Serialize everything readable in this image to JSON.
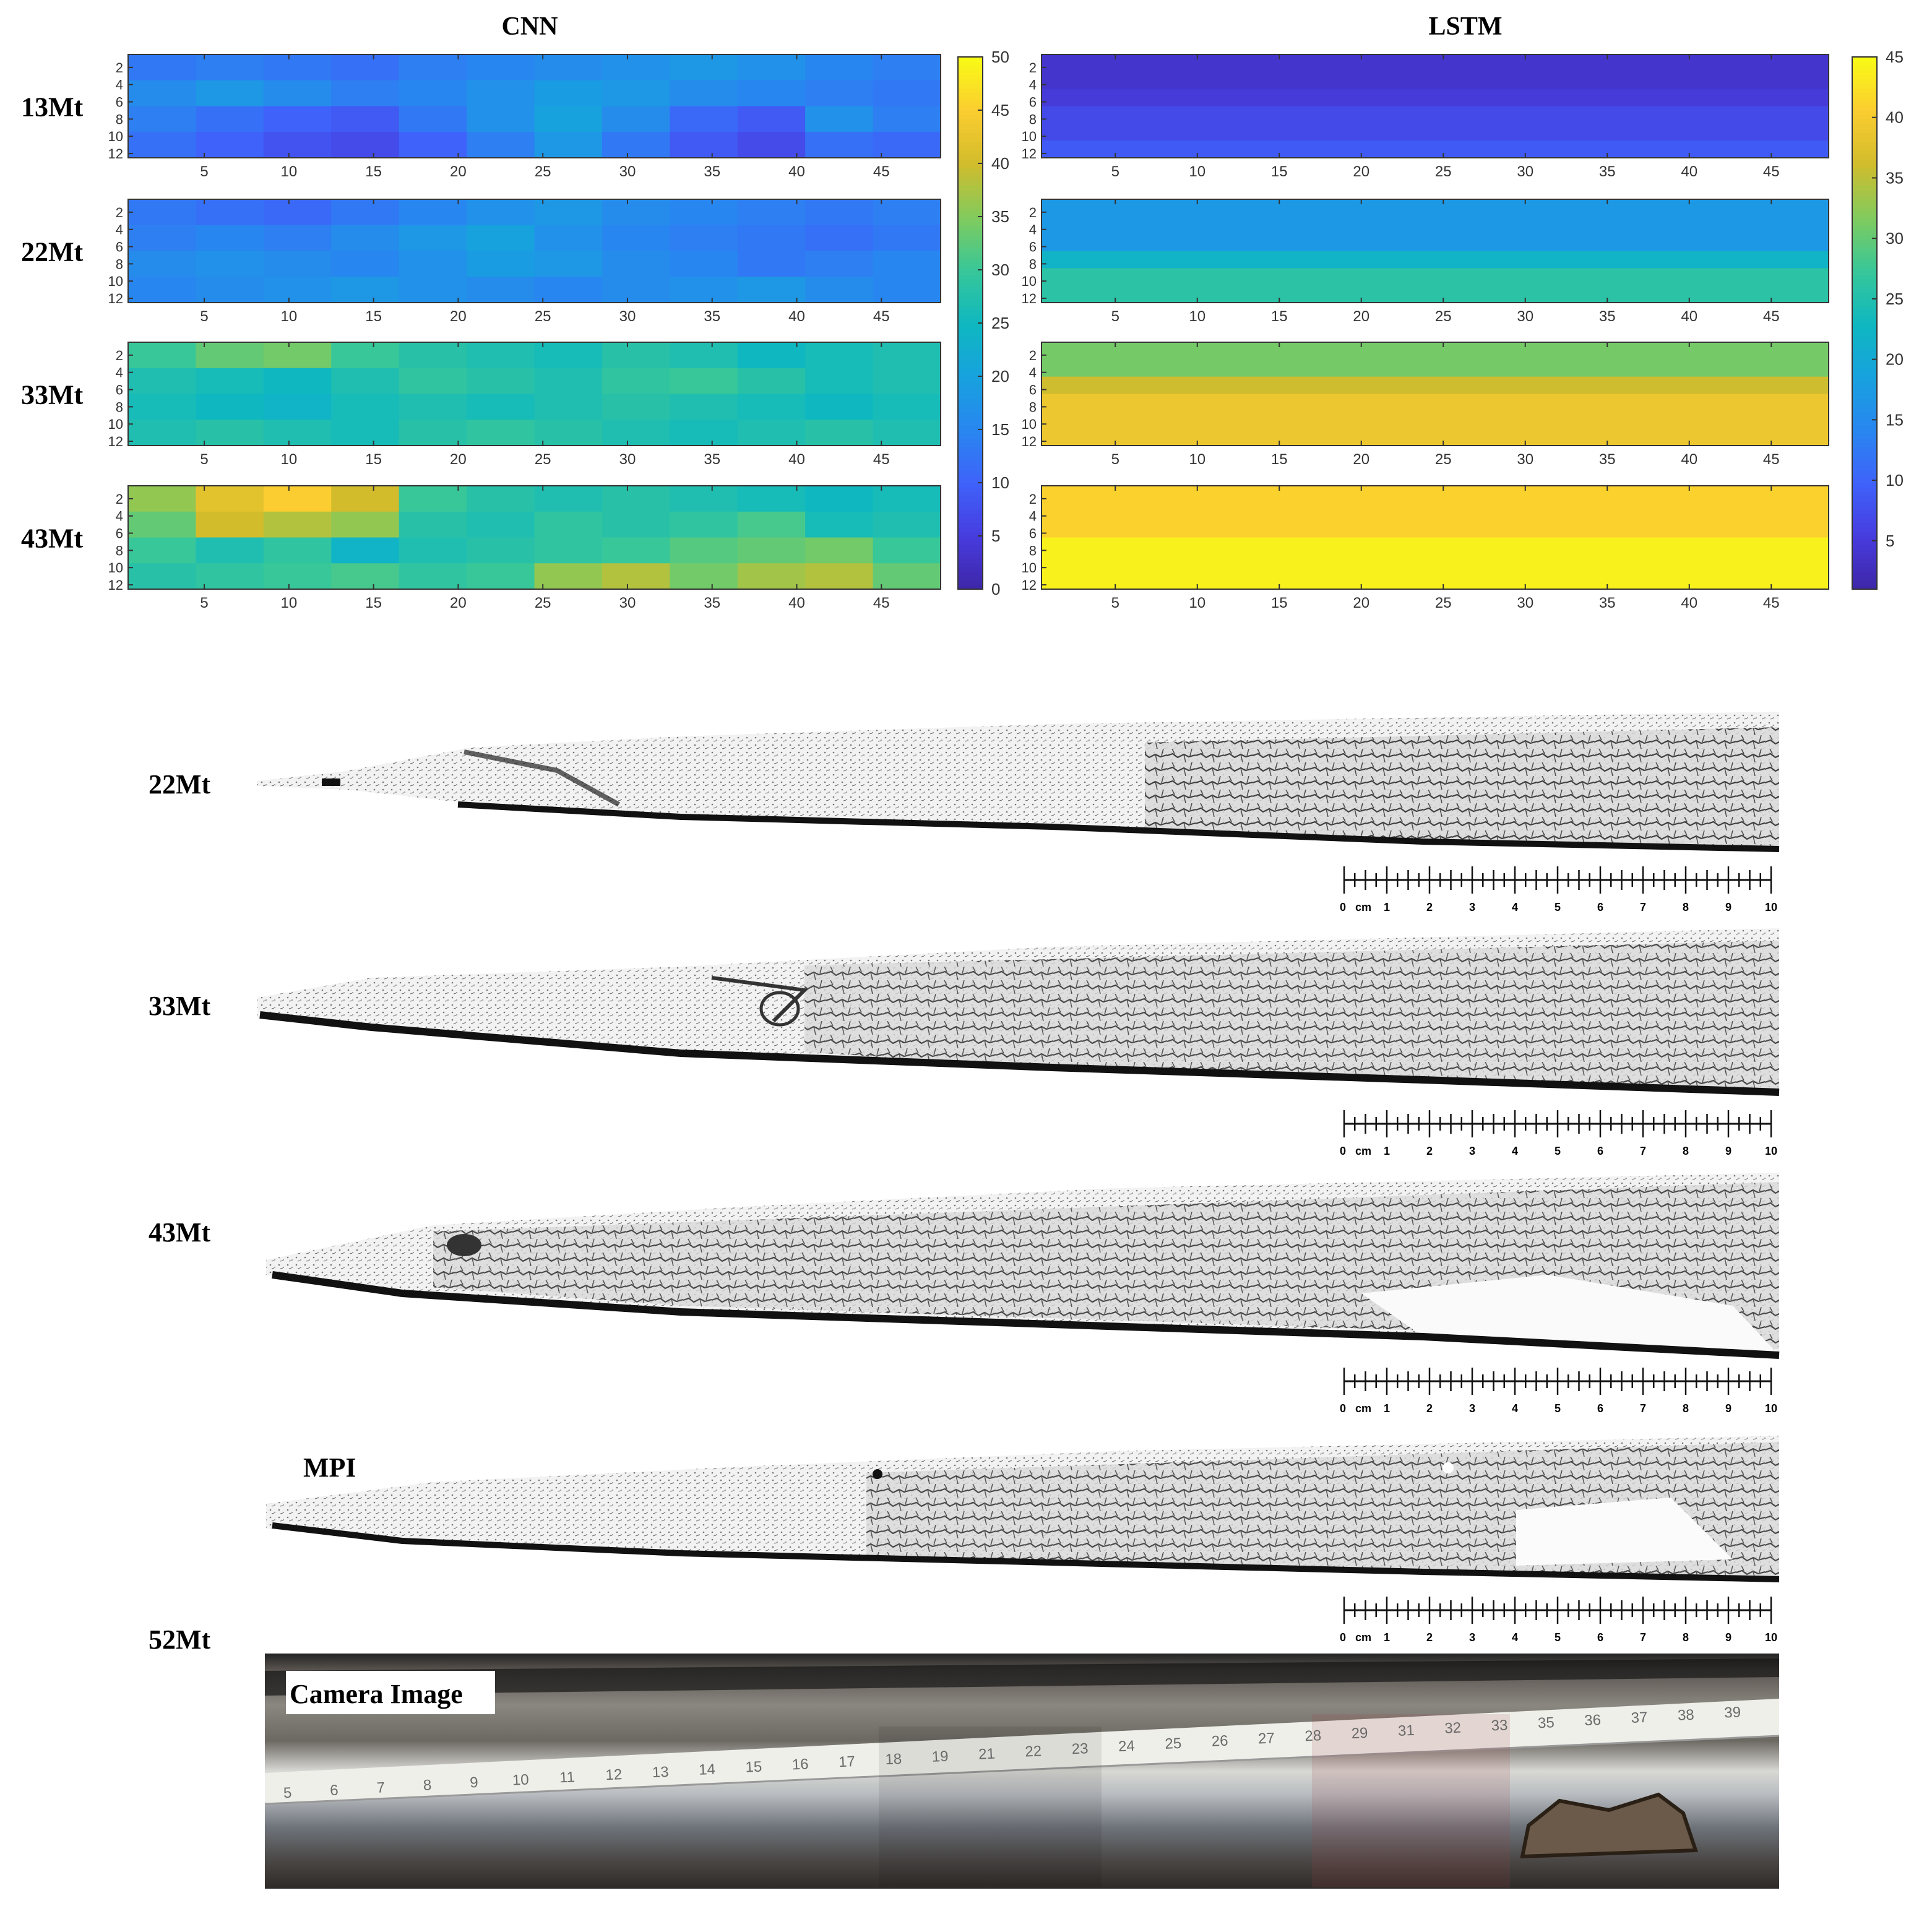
{
  "chart_data": [
    {
      "type": "heatmap",
      "title": "CNN",
      "x_ticks": [
        5,
        10,
        15,
        20,
        25,
        30,
        35,
        40,
        45
      ],
      "y_ticks": [
        2,
        4,
        6,
        8,
        10,
        12
      ],
      "xlim": [
        0.5,
        48.5
      ],
      "ylim": [
        0.5,
        12.5
      ],
      "colorbar": {
        "min": 0,
        "max": 50,
        "ticks": [
          0,
          5,
          10,
          15,
          20,
          25,
          30,
          35,
          40,
          45,
          50
        ]
      },
      "panels": [
        {
          "label": "13Mt",
          "level": 14,
          "rows": [
            [
              13,
              14,
              13,
              12,
              14,
              15,
              16,
              17,
              18,
              17,
              15,
              14
            ],
            [
              16,
              18,
              16,
              14,
              15,
              17,
              19,
              18,
              16,
              15,
              14,
              13
            ],
            [
              14,
              12,
              10,
              9,
              13,
              17,
              20,
              16,
              11,
              9,
              17,
              14
            ],
            [
              12,
              10,
              8,
              7,
              10,
              14,
              18,
              13,
              9,
              7,
              12,
              11
            ]
          ]
        },
        {
          "label": "22Mt",
          "level": 16,
          "rows": [
            [
              13,
              12,
              11,
              13,
              15,
              17,
              18,
              16,
              15,
              14,
              13,
              14
            ],
            [
              14,
              15,
              14,
              16,
              18,
              20,
              17,
              15,
              14,
              13,
              12,
              13
            ],
            [
              16,
              17,
              16,
              15,
              17,
              19,
              18,
              16,
              15,
              13,
              14,
              15
            ],
            [
              15,
              16,
              17,
              18,
              17,
              16,
              15,
              16,
              17,
              18,
              16,
              15
            ]
          ]
        },
        {
          "label": "33Mt",
          "level": 27,
          "rows": [
            [
              30,
              33,
              34,
              30,
              28,
              27,
              26,
              28,
              27,
              25,
              26,
              27
            ],
            [
              27,
              26,
              25,
              27,
              29,
              28,
              27,
              29,
              30,
              28,
              26,
              27
            ],
            [
              26,
              25,
              24,
              26,
              27,
              26,
              27,
              28,
              27,
              26,
              25,
              26
            ],
            [
              27,
              28,
              27,
              26,
              28,
              29,
              28,
              27,
              26,
              27,
              28,
              27
            ]
          ]
        },
        {
          "label": "43Mt",
          "level": 30,
          "rows": [
            [
              36,
              42,
              45,
              40,
              30,
              28,
              27,
              28,
              27,
              26,
              25,
              26
            ],
            [
              33,
              40,
              38,
              36,
              28,
              27,
              29,
              28,
              29,
              31,
              26,
              27
            ],
            [
              30,
              27,
              29,
              24,
              27,
              28,
              29,
              30,
              32,
              33,
              34,
              30
            ],
            [
              28,
              29,
              30,
              31,
              29,
              30,
              36,
              38,
              34,
              37,
              38,
              33
            ]
          ]
        }
      ]
    },
    {
      "type": "heatmap",
      "title": "LSTM",
      "x_ticks": [
        5,
        10,
        15,
        20,
        25,
        30,
        35,
        40,
        45
      ],
      "y_ticks": [
        2,
        4,
        6,
        8,
        10,
        12
      ],
      "xlim": [
        0.5,
        48.5
      ],
      "ylim": [
        0.5,
        12.5
      ],
      "colorbar": {
        "min": 1,
        "max": 45,
        "ticks": [
          5,
          10,
          15,
          20,
          25,
          30,
          35,
          40,
          45
        ]
      },
      "panels": [
        {
          "label": "13Mt",
          "bands": [
            {
              "rows": [
                1,
                4
              ],
              "value": 4
            },
            {
              "rows": [
                5,
                6
              ],
              "value": 5
            },
            {
              "rows": [
                7,
                10
              ],
              "value": 7
            },
            {
              "rows": [
                11,
                12
              ],
              "value": 9
            }
          ]
        },
        {
          "label": "22Mt",
          "bands": [
            {
              "rows": [
                1,
                6
              ],
              "value": 17
            },
            {
              "rows": [
                7,
                8
              ],
              "value": 22
            },
            {
              "rows": [
                9,
                12
              ],
              "value": 26
            }
          ]
        },
        {
          "label": "33Mt",
          "bands": [
            {
              "rows": [
                1,
                4
              ],
              "value": 31
            },
            {
              "rows": [
                5,
                6
              ],
              "value": 36
            },
            {
              "rows": [
                7,
                12
              ],
              "value": 39
            }
          ]
        },
        {
          "label": "43Mt",
          "bands": [
            {
              "rows": [
                1,
                6
              ],
              "value": 41
            },
            {
              "rows": [
                7,
                12
              ],
              "value": 44
            }
          ]
        }
      ]
    }
  ],
  "images": {
    "scans": [
      {
        "label": "22Mt"
      },
      {
        "label": "33Mt"
      },
      {
        "label": "43Mt"
      },
      {
        "label": "52Mt"
      }
    ],
    "mpi_label": "MPI",
    "camera_label": "Camera Image",
    "scale_bar": {
      "unit": "cm",
      "ticks": [
        "0",
        "1",
        "2",
        "3",
        "4",
        "5",
        "6",
        "7",
        "8",
        "9",
        "10"
      ]
    },
    "camera_ruler": [
      "5",
      "6",
      "7",
      "8",
      "9",
      "10",
      "11",
      "12",
      "13",
      "14",
      "15",
      "16",
      "17",
      "18",
      "19",
      "21",
      "22",
      "23",
      "24",
      "25",
      "26",
      "27",
      "28",
      "29",
      "31",
      "32",
      "33",
      "35",
      "36",
      "37",
      "38",
      "39"
    ]
  }
}
